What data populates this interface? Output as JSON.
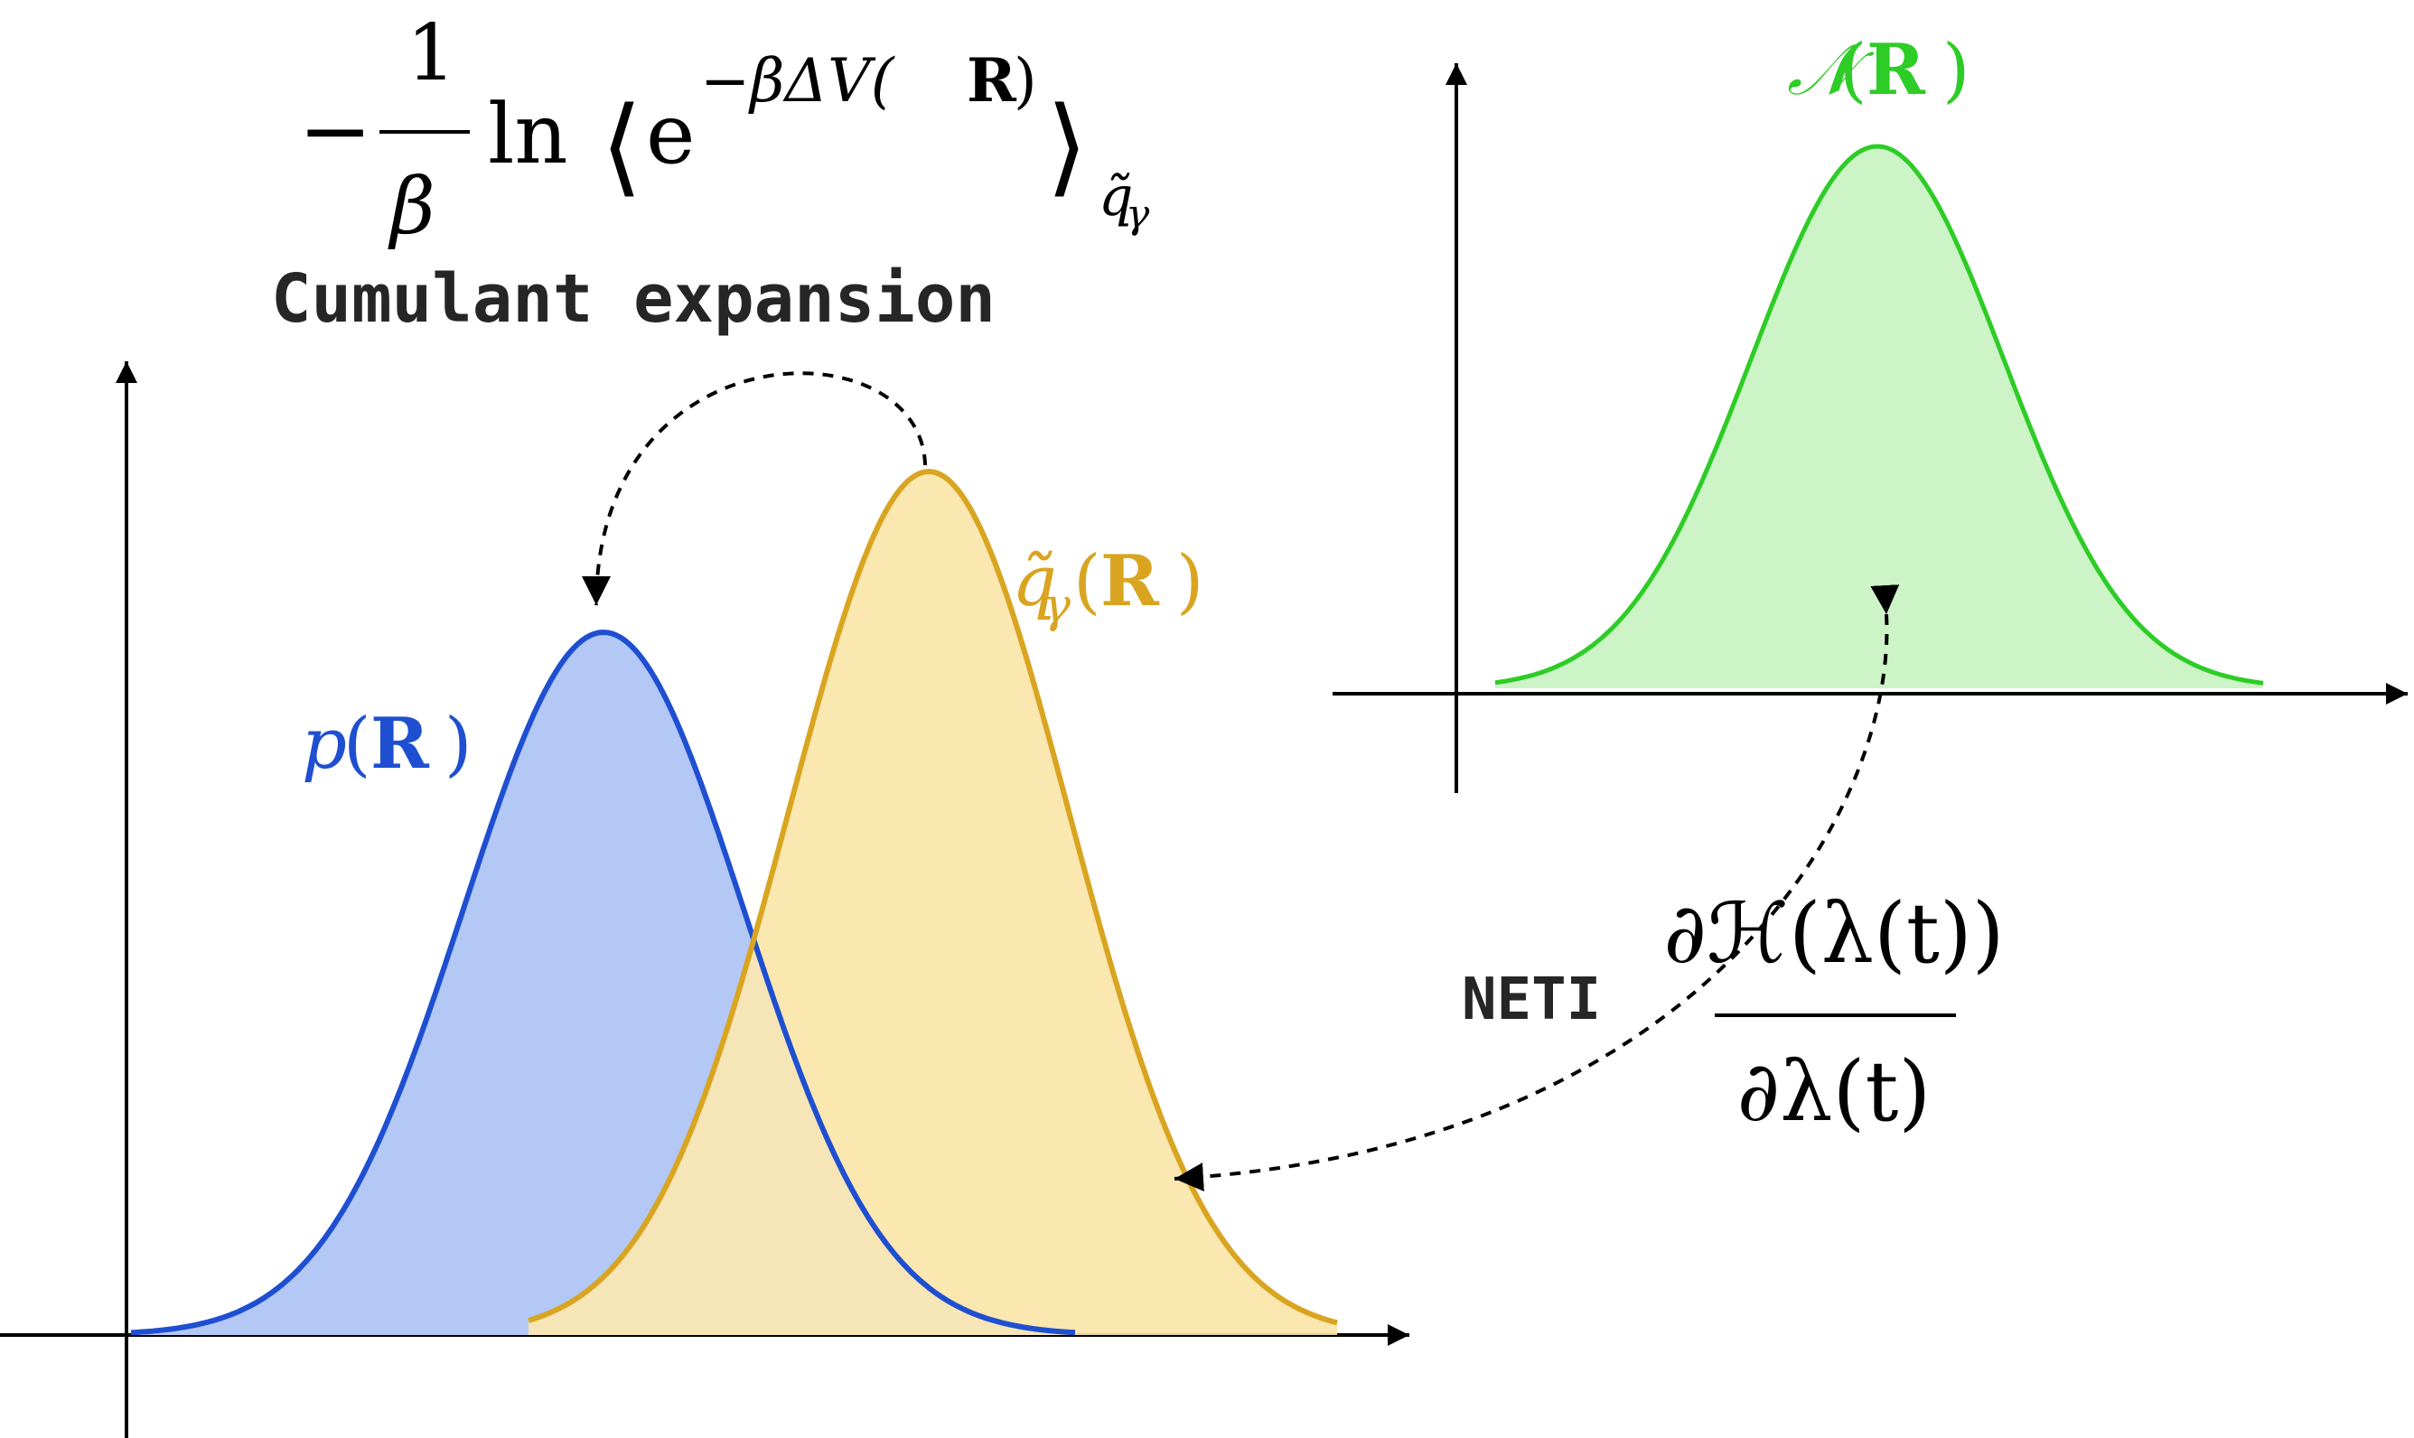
{
  "colors": {
    "blue_line": "#1f4fd1",
    "blue_fill": "#b3c8f5",
    "yellow_line": "#d9a521",
    "yellow_fill": "#fbe5a9",
    "overlap_fill": "#f6e7bd",
    "green_line": "#2ecc26",
    "green_fill": "#ccf4c6",
    "axis": "#000000",
    "text_dark": "#262626"
  },
  "labels": {
    "p": "p",
    "q": "q̃",
    "q_sub": "γ",
    "n": "𝒩",
    "r": "R",
    "open_paren": "(",
    "close_paren": ")"
  },
  "formula_top": {
    "minus": "−",
    "num": "1",
    "den": "β",
    "ln": "ln",
    "left_angle": "⟨",
    "base": "e",
    "exponent": "−βΔV(",
    "exponent_r": "R",
    "exponent_close": ")",
    "right_angle": "⟩",
    "subscript": "q̃",
    "subscript_gamma": "γ"
  },
  "formula_right": {
    "numerator": "∂ℋ(λ(t))",
    "denominator": "∂λ(t)"
  },
  "annotations": {
    "cumulant": "Cumulant expansion",
    "neti": "NETI"
  },
  "icons": {
    "arrow": "arrow-icon"
  }
}
